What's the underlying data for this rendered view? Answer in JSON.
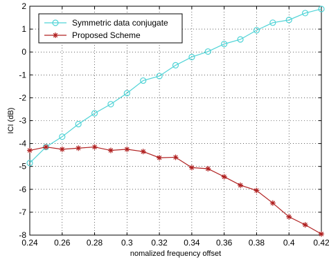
{
  "chart_data": {
    "type": "line",
    "title": "",
    "xlabel": "nomalized frequency offset",
    "ylabel": "ICI (dB)",
    "xlim": [
      0.24,
      0.42
    ],
    "ylim": [
      -8,
      2
    ],
    "grid": true,
    "grid_style": "dotted",
    "legend_position": "top-left",
    "x_ticks": [
      "0.24",
      "0.26",
      "0.28",
      "0.3",
      "0.32",
      "0.34",
      "0.36",
      "0.38",
      "0.4",
      "0.42"
    ],
    "y_ticks": [
      "2",
      "1",
      "0",
      "-1",
      "-2",
      "-3",
      "-4",
      "-5",
      "-6",
      "-7",
      "-8"
    ],
    "x": [
      0.24,
      0.25,
      0.26,
      0.27,
      0.28,
      0.29,
      0.3,
      0.31,
      0.32,
      0.33,
      0.34,
      0.35,
      0.36,
      0.37,
      0.38,
      0.39,
      0.4,
      0.41,
      0.42
    ],
    "series": [
      {
        "name": "Symmetric data conjugate",
        "color": "#4fd3d6",
        "marker": "circle",
        "values": [
          -4.85,
          -4.15,
          -3.7,
          -3.15,
          -2.68,
          -2.28,
          -1.8,
          -1.25,
          -1.05,
          -0.58,
          -0.22,
          0.02,
          0.35,
          0.55,
          0.95,
          1.28,
          1.4,
          1.7,
          1.88
        ]
      },
      {
        "name": "Proposed Scheme",
        "color": "#b02020",
        "marker": "star",
        "values": [
          -4.3,
          -4.15,
          -4.25,
          -4.2,
          -4.15,
          -4.3,
          -4.25,
          -4.35,
          -4.62,
          -4.6,
          -5.05,
          -5.1,
          -5.45,
          -5.82,
          -6.05,
          -6.6,
          -7.2,
          -7.55,
          -7.95
        ]
      }
    ]
  }
}
